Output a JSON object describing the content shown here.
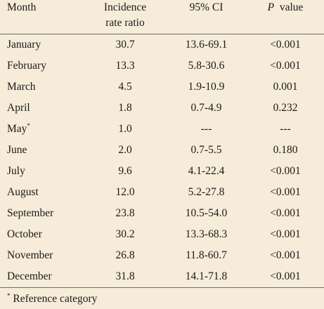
{
  "table": {
    "headers": {
      "month": "Month",
      "irr_line1": "Incidence",
      "irr_line2": "rate ratio",
      "ci": "95% CI",
      "p_letter": "P",
      "p_word": "value"
    },
    "rows": [
      {
        "month": "January",
        "mark": "",
        "irr": "30.7",
        "ci": "13.6-69.1",
        "p": "<0.001"
      },
      {
        "month": "February",
        "mark": "",
        "irr": "13.3",
        "ci": "5.8-30.6",
        "p": "<0.001"
      },
      {
        "month": "March",
        "mark": "",
        "irr": "4.5",
        "ci": "1.9-10.9",
        "p": "0.001"
      },
      {
        "month": "April",
        "mark": "",
        "irr": "1.8",
        "ci": "0.7-4.9",
        "p": "0.232"
      },
      {
        "month": "May",
        "mark": "*",
        "irr": "1.0",
        "ci": "---",
        "p": "---"
      },
      {
        "month": "June",
        "mark": "",
        "irr": "2.0",
        "ci": "0.7-5.5",
        "p": "0.180"
      },
      {
        "month": "July",
        "mark": "",
        "irr": "9.6",
        "ci": "4.1-22.4",
        "p": "<0.001"
      },
      {
        "month": "August",
        "mark": "",
        "irr": "12.0",
        "ci": "5.2-27.8",
        "p": "<0.001"
      },
      {
        "month": "September",
        "mark": "",
        "irr": "23.8",
        "ci": "10.5-54.0",
        "p": "<0.001"
      },
      {
        "month": "October",
        "mark": "",
        "irr": "30.2",
        "ci": "13.3-68.3",
        "p": "<0.001"
      },
      {
        "month": "November",
        "mark": "",
        "irr": "26.8",
        "ci": "11.8-60.7",
        "p": "<0.001"
      },
      {
        "month": "December",
        "mark": "",
        "irr": "31.8",
        "ci": "14.1-71.8",
        "p": "<0.001"
      }
    ]
  },
  "footnote": {
    "mark": "*",
    "text": "Reference category"
  },
  "colors": {
    "background": "#f6ecd9",
    "rule": "#6e6e6e"
  }
}
